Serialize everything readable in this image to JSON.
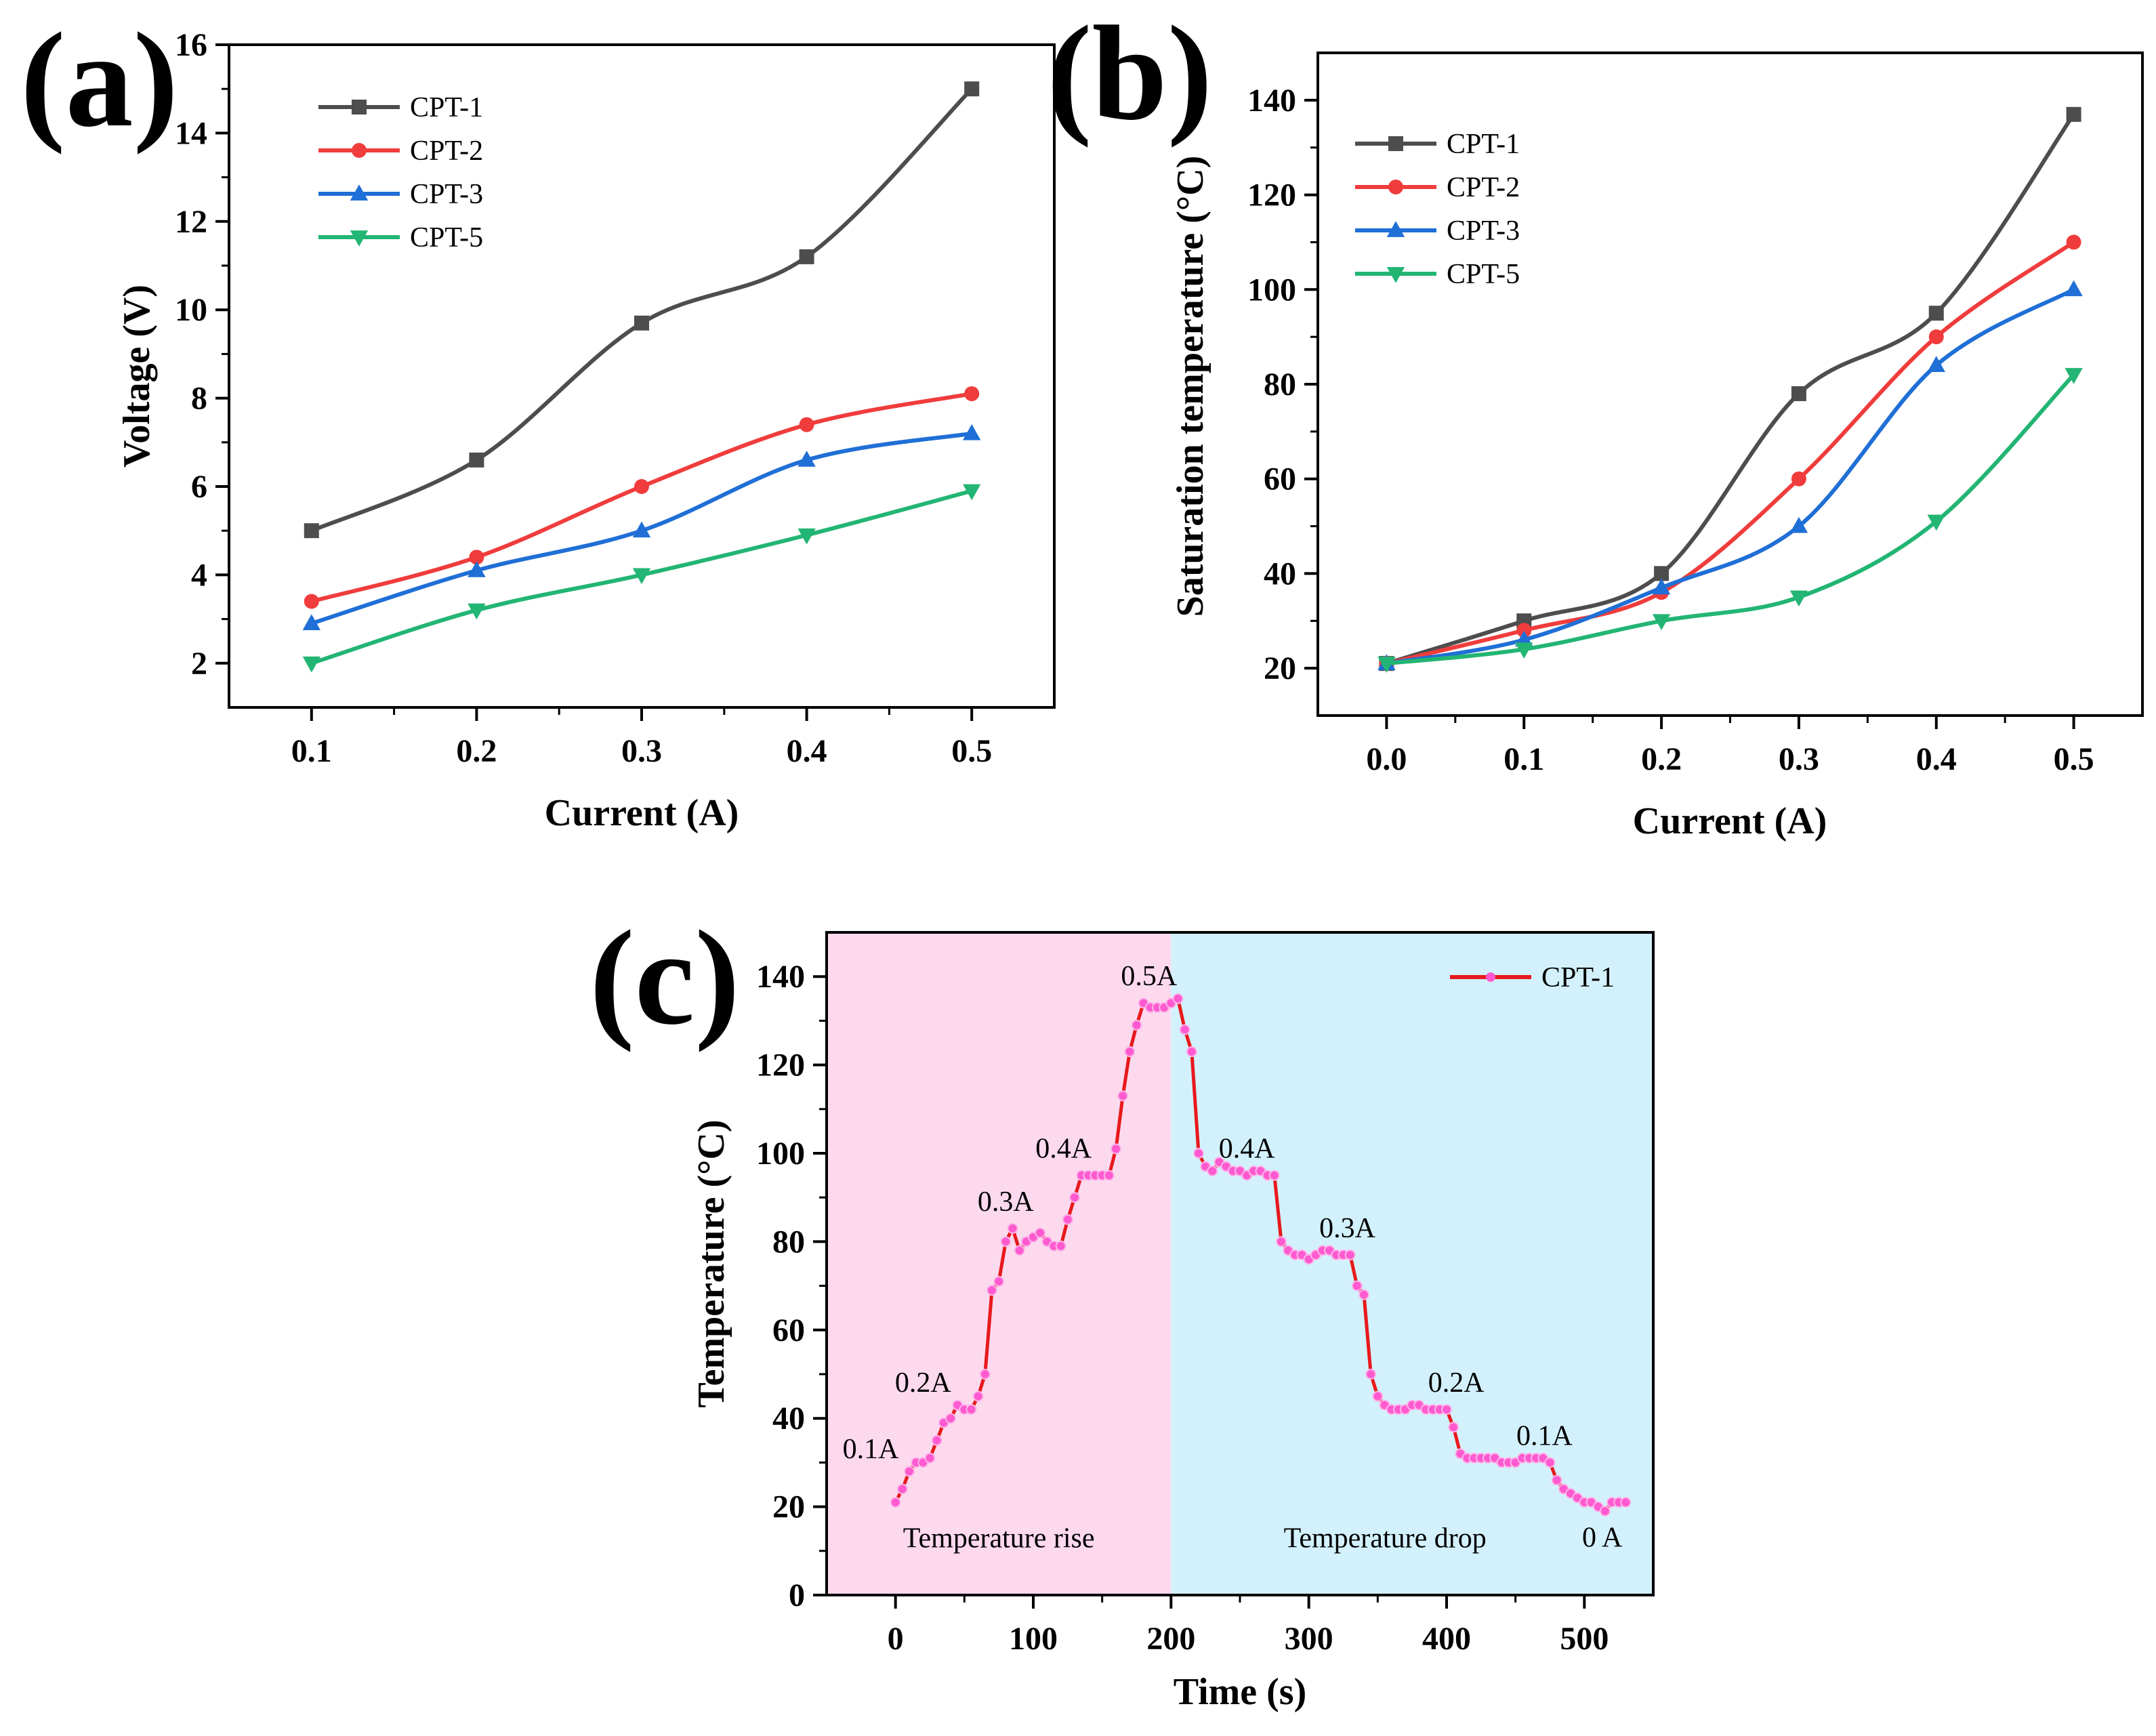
{
  "chart_data": [
    {
      "id": "a",
      "type": "line",
      "panel_label": "(a)",
      "xlabel": "Current (A)",
      "ylabel": "Voltage (V)",
      "xlim": [
        0.05,
        0.55
      ],
      "ylim": [
        1,
        16
      ],
      "xticks": [
        0.1,
        0.2,
        0.3,
        0.4,
        0.5
      ],
      "yticks": [
        2,
        4,
        6,
        8,
        10,
        12,
        14,
        16
      ],
      "xtick_labels": [
        "0.1",
        "0.2",
        "0.3",
        "0.4",
        "0.5"
      ],
      "ytick_labels": [
        "2",
        "4",
        "6",
        "8",
        "10",
        "12",
        "14",
        "16"
      ],
      "grid": false,
      "legend_position": "top-left",
      "x": [
        0.1,
        0.2,
        0.3,
        0.4,
        0.5
      ],
      "series": [
        {
          "name": "CPT-1",
          "color": "#4d4d4d",
          "marker": "square",
          "values": [
            5.0,
            6.6,
            9.7,
            11.2,
            15.0
          ]
        },
        {
          "name": "CPT-2",
          "color": "#f03c3c",
          "marker": "circle",
          "values": [
            3.4,
            4.4,
            6.0,
            7.4,
            8.1
          ]
        },
        {
          "name": "CPT-3",
          "color": "#1f6fd6",
          "marker": "triangle-up",
          "values": [
            2.9,
            4.1,
            5.0,
            6.6,
            7.2
          ]
        },
        {
          "name": "CPT-5",
          "color": "#22b573",
          "marker": "triangle-down",
          "values": [
            2.0,
            3.2,
            4.0,
            4.9,
            5.9
          ]
        }
      ]
    },
    {
      "id": "b",
      "type": "line",
      "panel_label": "(b)",
      "xlabel": "Current (A)",
      "ylabel": "Saturation temperature (°C)",
      "xlim": [
        -0.05,
        0.55
      ],
      "ylim": [
        10,
        150
      ],
      "xticks": [
        0.0,
        0.1,
        0.2,
        0.3,
        0.4,
        0.5
      ],
      "yticks": [
        20,
        40,
        60,
        80,
        100,
        120,
        140
      ],
      "xtick_labels": [
        "0.0",
        "0.1",
        "0.2",
        "0.3",
        "0.4",
        "0.5"
      ],
      "ytick_labels": [
        "20",
        "40",
        "60",
        "80",
        "100",
        "120",
        "140"
      ],
      "grid": false,
      "legend_position": "top-left",
      "x": [
        0.0,
        0.1,
        0.2,
        0.3,
        0.4,
        0.5
      ],
      "series": [
        {
          "name": "CPT-1",
          "color": "#4d4d4d",
          "marker": "square",
          "values": [
            21,
            30,
            40,
            78,
            95,
            137
          ]
        },
        {
          "name": "CPT-2",
          "color": "#f03c3c",
          "marker": "circle",
          "values": [
            21,
            28,
            36,
            60,
            90,
            110
          ]
        },
        {
          "name": "CPT-3",
          "color": "#1f6fd6",
          "marker": "triangle-up",
          "values": [
            21,
            26,
            37,
            50,
            84,
            100
          ]
        },
        {
          "name": "CPT-5",
          "color": "#22b573",
          "marker": "triangle-down",
          "values": [
            21,
            24,
            30,
            35,
            51,
            82
          ]
        }
      ]
    },
    {
      "id": "c",
      "type": "line",
      "panel_label": "(c)",
      "xlabel": "Time (s)",
      "ylabel": "Temperature (°C)",
      "xlim": [
        -50,
        550
      ],
      "ylim": [
        0,
        150
      ],
      "xticks": [
        0,
        100,
        200,
        300,
        400,
        500
      ],
      "yticks": [
        0,
        20,
        40,
        60,
        80,
        100,
        120,
        140
      ],
      "xtick_labels": [
        "0",
        "100",
        "200",
        "300",
        "400",
        "500"
      ],
      "ytick_labels": [
        "0",
        "20",
        "40",
        "60",
        "80",
        "100",
        "120",
        "140"
      ],
      "grid": false,
      "legend_position": "top-right",
      "regions": [
        {
          "label": "Temperature rise",
          "x_range": [
            -50,
            200
          ],
          "color": "#fdd9ee"
        },
        {
          "label": "Temperature drop",
          "x_range": [
            200,
            550
          ],
          "color": "#d3f1fc"
        }
      ],
      "annotations": [
        {
          "text": "0.1A",
          "x": -18,
          "y": 31
        },
        {
          "text": "0.2A",
          "x": 20,
          "y": 46
        },
        {
          "text": "0.3A",
          "x": 80,
          "y": 87
        },
        {
          "text": "0.4A",
          "x": 122,
          "y": 99
        },
        {
          "text": "0.5A",
          "x": 184,
          "y": 138
        },
        {
          "text": "0.4A",
          "x": 255,
          "y": 99
        },
        {
          "text": "0.3A",
          "x": 328,
          "y": 81
        },
        {
          "text": "0.2A",
          "x": 407,
          "y": 46
        },
        {
          "text": "0.1A",
          "x": 471,
          "y": 34
        },
        {
          "text": "0 A",
          "x": 513,
          "y": 11
        }
      ],
      "series": [
        {
          "name": "CPT-1",
          "color": "#e8191c",
          "marker_color": "#ff5ad0",
          "marker": "circle",
          "x": [
            0,
            5,
            10,
            15,
            20,
            25,
            30,
            35,
            40,
            45,
            50,
            55,
            60,
            65,
            70,
            75,
            80,
            85,
            90,
            95,
            100,
            105,
            110,
            115,
            120,
            125,
            130,
            135,
            140,
            145,
            150,
            155,
            160,
            165,
            170,
            175,
            180,
            185,
            190,
            195,
            200,
            205,
            210,
            215,
            220,
            225,
            230,
            235,
            240,
            245,
            250,
            255,
            260,
            265,
            270,
            275,
            280,
            285,
            290,
            295,
            300,
            305,
            310,
            315,
            320,
            325,
            330,
            335,
            340,
            345,
            350,
            355,
            360,
            365,
            370,
            375,
            380,
            385,
            390,
            395,
            400,
            405,
            410,
            415,
            420,
            425,
            430,
            435,
            440,
            445,
            450,
            455,
            460,
            465,
            470,
            475,
            480,
            485,
            490,
            495,
            500,
            505,
            510,
            515,
            520,
            525,
            530
          ],
          "values": [
            21,
            24,
            28,
            30,
            30,
            31,
            35,
            39,
            40,
            43,
            42,
            42,
            45,
            50,
            69,
            71,
            80,
            83,
            78,
            80,
            81,
            82,
            80,
            79,
            79,
            85,
            90,
            95,
            95,
            95,
            95,
            95,
            101,
            113,
            123,
            129,
            134,
            133,
            133,
            133,
            134,
            135,
            128,
            123,
            100,
            97,
            96,
            98,
            97,
            96,
            96,
            95,
            96,
            96,
            95,
            95,
            80,
            78,
            77,
            77,
            76,
            77,
            78,
            78,
            77,
            77,
            77,
            70,
            68,
            50,
            45,
            43,
            42,
            42,
            42,
            43,
            43,
            42,
            42,
            42,
            42,
            38,
            32,
            31,
            31,
            31,
            31,
            31,
            30,
            30,
            30,
            31,
            31,
            31,
            31,
            30,
            26,
            24,
            23,
            22,
            21,
            21,
            20,
            19,
            21,
            21,
            21
          ]
        }
      ]
    }
  ]
}
